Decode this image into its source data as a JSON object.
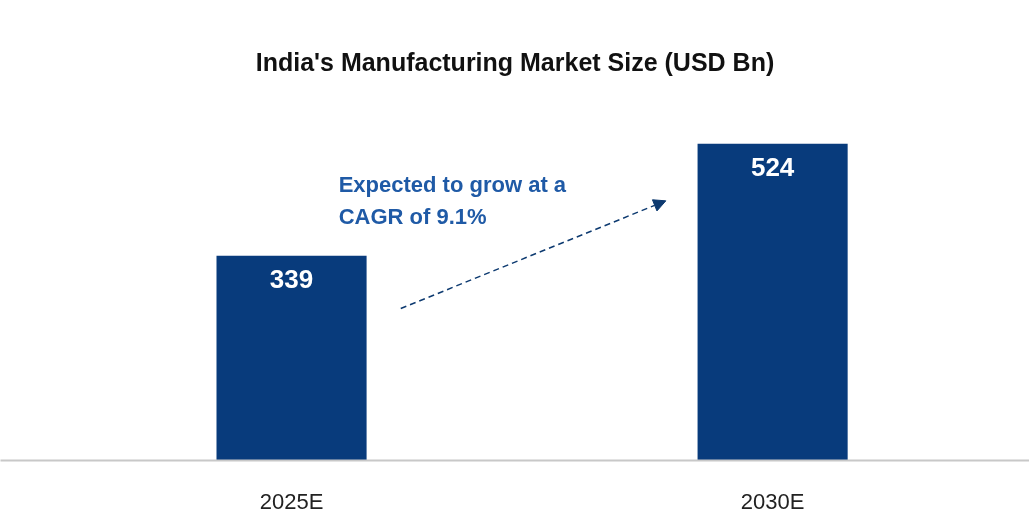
{
  "chart_data": {
    "type": "bar",
    "title": "India's Manufacturing Market Size (USD Bn)",
    "categories": [
      "2025E",
      "2030E"
    ],
    "values": [
      339,
      524
    ],
    "color": "#083b7c",
    "data_labels": true,
    "annotations": [
      "Expected to grow at a\nCAGR of 9.1%"
    ]
  }
}
